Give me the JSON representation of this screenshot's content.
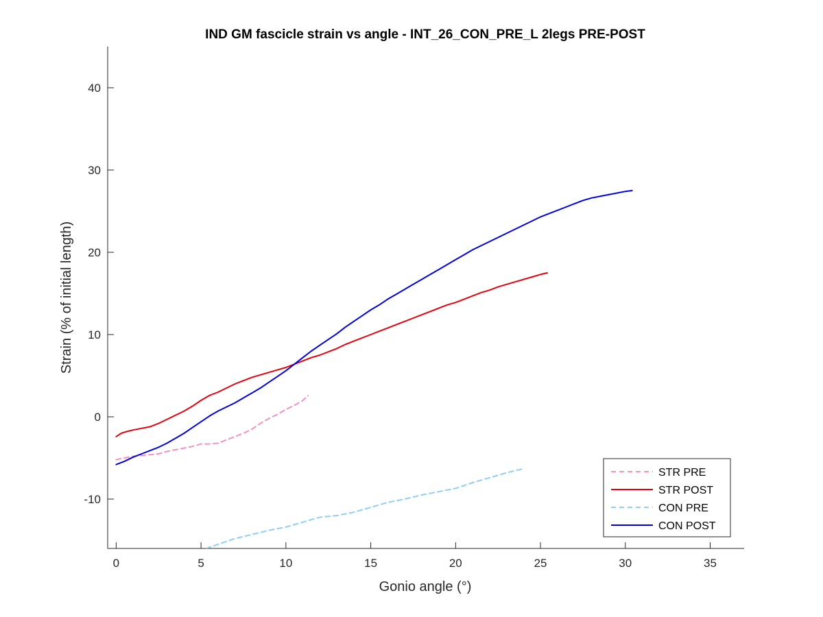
{
  "chart_data": {
    "type": "line",
    "title": "IND GM fascicle strain vs angle - INT_26_CON_PRE_L 2legs PRE-POST",
    "xlabel": "Gonio angle (°)",
    "ylabel": "Strain (% of initial length)",
    "xlim": [
      -0.5,
      37
    ],
    "ylim": [
      -16,
      45
    ],
    "xticks": [
      0,
      5,
      10,
      15,
      20,
      25,
      30,
      35
    ],
    "yticks": [
      -10,
      0,
      10,
      20,
      30,
      40
    ],
    "legend_position": "bottom-right",
    "grid": false,
    "series": [
      {
        "name": "STR PRE",
        "color": "#f590c0",
        "dash": "dashed",
        "x": [
          0,
          0.5,
          1,
          1.5,
          2,
          2.5,
          3,
          3.5,
          4,
          4.5,
          5,
          5.5,
          6,
          6.5,
          7,
          7.5,
          8,
          8.5,
          9,
          9.5,
          10,
          10.5,
          11,
          11.3
        ],
        "y": [
          -5.2,
          -5.0,
          -4.8,
          -4.7,
          -4.6,
          -4.5,
          -4.2,
          -4.0,
          -3.8,
          -3.6,
          -3.3,
          -3.3,
          -3.2,
          -2.8,
          -2.4,
          -2.0,
          -1.5,
          -0.8,
          -0.2,
          0.3,
          0.9,
          1.4,
          2.0,
          2.6
        ]
      },
      {
        "name": "STR POST",
        "color": "#e8000b",
        "dash": "solid",
        "x": [
          0,
          0.3,
          0.6,
          1,
          1.5,
          2,
          2.5,
          3,
          3.5,
          4,
          4.5,
          5,
          5.5,
          6,
          6.5,
          7,
          7.5,
          8,
          8.5,
          9,
          9.5,
          10,
          10.5,
          11,
          11.5,
          12,
          12.5,
          13,
          13.5,
          14,
          14.5,
          15,
          15.5,
          16,
          16.5,
          17,
          17.5,
          18,
          18.5,
          19,
          19.5,
          20,
          20.5,
          21,
          21.5,
          22,
          22.5,
          23,
          23.5,
          24,
          24.5,
          25,
          25.4
        ],
        "y": [
          -2.4,
          -2.0,
          -1.8,
          -1.6,
          -1.4,
          -1.2,
          -0.8,
          -0.3,
          0.2,
          0.7,
          1.3,
          2.0,
          2.6,
          3.0,
          3.5,
          4.0,
          4.4,
          4.8,
          5.1,
          5.4,
          5.7,
          6.0,
          6.4,
          6.8,
          7.2,
          7.5,
          7.9,
          8.3,
          8.8,
          9.2,
          9.6,
          10.0,
          10.4,
          10.8,
          11.2,
          11.6,
          12.0,
          12.4,
          12.8,
          13.2,
          13.6,
          13.9,
          14.3,
          14.7,
          15.1,
          15.4,
          15.8,
          16.1,
          16.4,
          16.7,
          17.0,
          17.3,
          17.5
        ]
      },
      {
        "name": "CON PRE",
        "color": "#8ecff5",
        "dash": "dashed",
        "x": [
          5.3,
          6,
          7,
          8,
          9,
          10,
          11,
          12,
          13,
          14,
          15,
          16,
          17,
          18,
          19,
          20,
          21,
          22,
          23,
          24
        ],
        "y": [
          -16.0,
          -15.5,
          -14.8,
          -14.3,
          -13.8,
          -13.4,
          -12.8,
          -12.2,
          -12.0,
          -11.6,
          -11.0,
          -10.4,
          -10.0,
          -9.5,
          -9.1,
          -8.7,
          -8.0,
          -7.4,
          -6.8,
          -6.3
        ]
      },
      {
        "name": "CON POST",
        "color": "#0000e6",
        "dash": "solid",
        "x": [
          0,
          0.5,
          1,
          1.5,
          2,
          2.5,
          3,
          3.5,
          4,
          4.5,
          5,
          5.5,
          6,
          6.5,
          7,
          7.5,
          8,
          8.5,
          9,
          9.5,
          10,
          10.5,
          11,
          11.5,
          12,
          12.5,
          13,
          13.5,
          14,
          14.5,
          15,
          15.5,
          16,
          16.5,
          17,
          17.5,
          18,
          18.5,
          19,
          19.5,
          20,
          20.5,
          21,
          21.5,
          22,
          22.5,
          23,
          23.5,
          24,
          24.5,
          25,
          25.5,
          26,
          26.5,
          27,
          27.5,
          28,
          28.5,
          29,
          29.5,
          30,
          30.4
        ],
        "y": [
          -5.8,
          -5.4,
          -4.9,
          -4.5,
          -4.1,
          -3.7,
          -3.2,
          -2.6,
          -2.0,
          -1.3,
          -0.6,
          0.1,
          0.7,
          1.2,
          1.7,
          2.3,
          2.9,
          3.5,
          4.2,
          4.9,
          5.6,
          6.4,
          7.2,
          8.0,
          8.7,
          9.4,
          10.1,
          10.9,
          11.6,
          12.3,
          13.0,
          13.6,
          14.3,
          14.9,
          15.5,
          16.1,
          16.7,
          17.3,
          17.9,
          18.5,
          19.1,
          19.7,
          20.3,
          20.8,
          21.3,
          21.8,
          22.3,
          22.8,
          23.3,
          23.8,
          24.3,
          24.7,
          25.1,
          25.5,
          25.9,
          26.3,
          26.6,
          26.8,
          27.0,
          27.2,
          27.4,
          27.5
        ]
      }
    ]
  }
}
